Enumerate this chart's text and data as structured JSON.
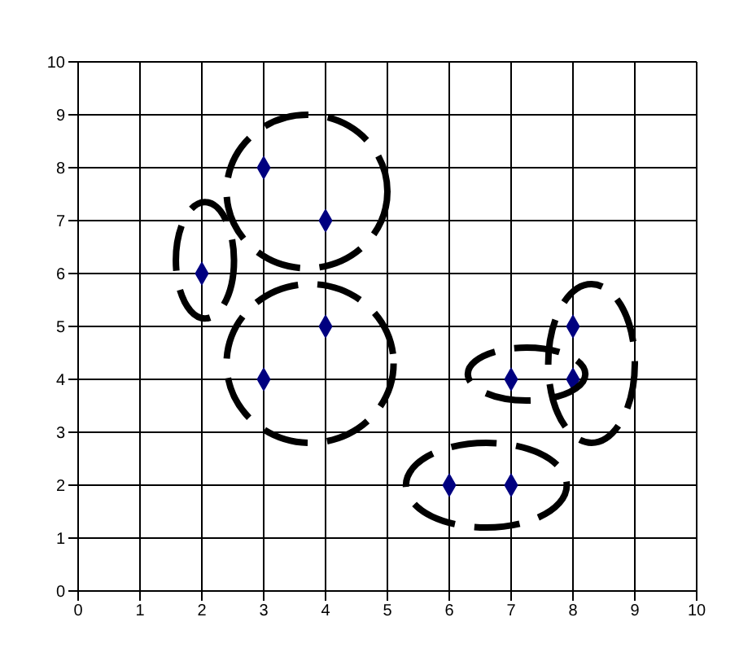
{
  "chart_data": {
    "type": "scatter",
    "x": [
      3,
      4,
      2,
      4,
      3,
      7,
      8,
      8,
      6,
      7
    ],
    "series": [
      {
        "color": "#000080",
        "values": [
          8,
          7,
          6,
          5,
          4,
          4,
          5,
          4,
          2,
          2
        ]
      }
    ],
    "xlim": [
      0,
      10
    ],
    "xticks": [
      0,
      1,
      2,
      3,
      4,
      5,
      6,
      7,
      8,
      9,
      10
    ],
    "ylim": [
      0,
      10
    ],
    "yticks": [
      0,
      1,
      2,
      3,
      4,
      5,
      6,
      7,
      8,
      9,
      10
    ],
    "grid": true,
    "marker": "diamond",
    "legend": false
  }
}
